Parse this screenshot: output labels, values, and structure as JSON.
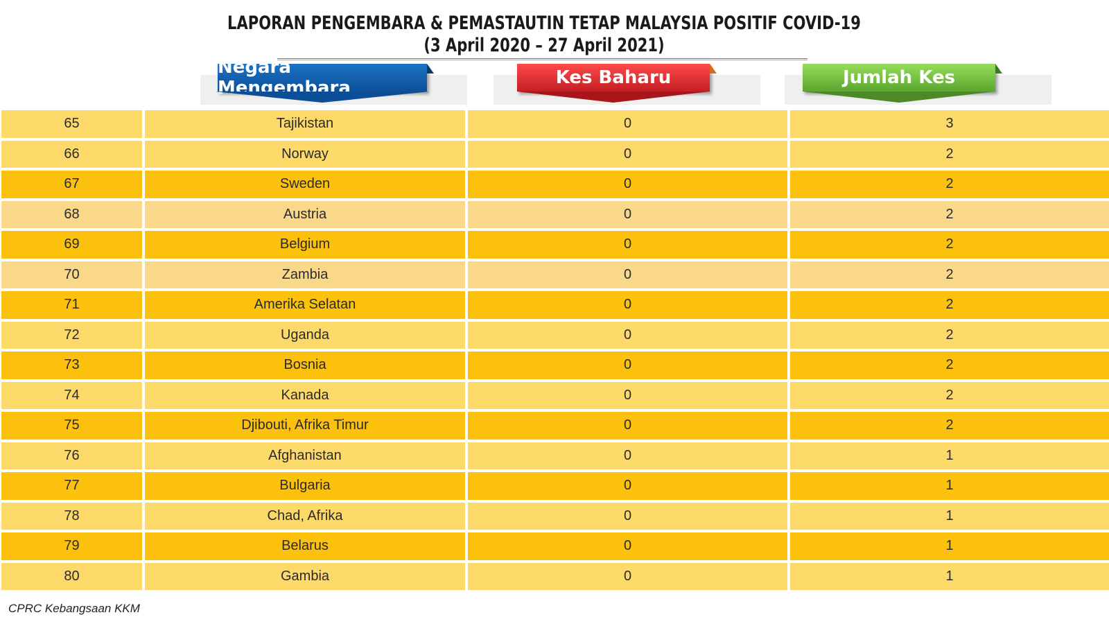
{
  "title": "LAPORAN PENGEMBARA & PEMASTAUTIN TETAP MALAYSIA POSITIF COVID-19",
  "subtitle": "(3 April 2020 – 27 April 2021)",
  "headers": {
    "country": "Negara Mengembara",
    "new_cases": "Kes Baharu",
    "total_cases": "Jumlah Kes"
  },
  "colors": {
    "row_light": "#fdd96a",
    "row_dark": "#fcc10c",
    "row_pale": "#f9d88a",
    "banner_blue": "#0d4f97",
    "banner_red": "#c41e24",
    "banner_green": "#5aa62e"
  },
  "rows": [
    {
      "no": "65",
      "country": "Tajikistan",
      "new": "0",
      "total": "3",
      "shade": "light"
    },
    {
      "no": "66",
      "country": "Norway",
      "new": "0",
      "total": "2",
      "shade": "light"
    },
    {
      "no": "67",
      "country": "Sweden",
      "new": "0",
      "total": "2",
      "shade": "dark"
    },
    {
      "no": "68",
      "country": "Austria",
      "new": "0",
      "total": "2",
      "shade": "pale"
    },
    {
      "no": "69",
      "country": "Belgium",
      "new": "0",
      "total": "2",
      "shade": "dark"
    },
    {
      "no": "70",
      "country": "Zambia",
      "new": "0",
      "total": "2",
      "shade": "pale"
    },
    {
      "no": "71",
      "country": "Amerika Selatan",
      "new": "0",
      "total": "2",
      "shade": "dark"
    },
    {
      "no": "72",
      "country": "Uganda",
      "new": "0",
      "total": "2",
      "shade": "light"
    },
    {
      "no": "73",
      "country": "Bosnia",
      "new": "0",
      "total": "2",
      "shade": "dark"
    },
    {
      "no": "74",
      "country": "Kanada",
      "new": "0",
      "total": "2",
      "shade": "light"
    },
    {
      "no": "75",
      "country": "Djibouti, Afrika Timur",
      "new": "0",
      "total": "2",
      "shade": "dark"
    },
    {
      "no": "76",
      "country": "Afghanistan",
      "new": "0",
      "total": "1",
      "shade": "light"
    },
    {
      "no": "77",
      "country": "Bulgaria",
      "new": "0",
      "total": "1",
      "shade": "dark"
    },
    {
      "no": "78",
      "country": "Chad, Afrika",
      "new": "0",
      "total": "1",
      "shade": "light"
    },
    {
      "no": "79",
      "country": "Belarus",
      "new": "0",
      "total": "1",
      "shade": "dark"
    },
    {
      "no": "80",
      "country": "Gambia",
      "new": "0",
      "total": "1",
      "shade": "light"
    }
  ],
  "footer": "CPRC Kebangsaan KKM"
}
